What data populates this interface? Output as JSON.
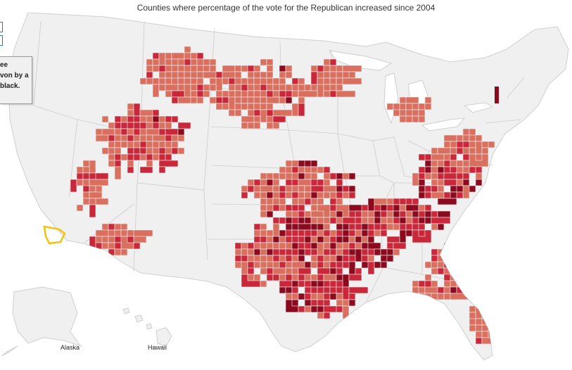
{
  "title": "Counties where percentage of the vote for the Republican increased since 2004",
  "tooltip": {
    "line1": "ee",
    "line2": "von by a",
    "line3": "",
    "line4": "black."
  },
  "insets": {
    "alaska": "Alaska",
    "hawaii": "Hawaii"
  },
  "colors": {
    "background": "#ffffff",
    "land": "#f0f0f0",
    "border": "#cccccc",
    "level_1": "#d9705f",
    "level_2": "#c8283a",
    "level_3": "#8c0a1e",
    "highlight_outline": "#f2c20f",
    "zoom_control": "#2a78b8"
  }
}
